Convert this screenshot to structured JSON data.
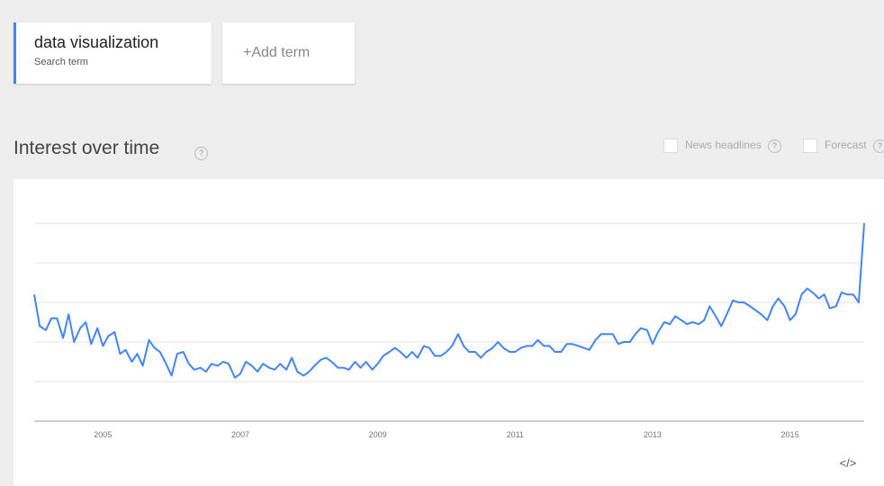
{
  "search_card": {
    "term": "data visualization",
    "caption": "Search term"
  },
  "add_card": {
    "label": "+Add term"
  },
  "section": {
    "title": "Interest over time",
    "help_icon": "?"
  },
  "options": {
    "news": "News headlines",
    "forecast": "Forecast"
  },
  "embed_icon": "</>",
  "chart_data": {
    "type": "line",
    "color": "#4285f4",
    "xlim": [
      2004,
      2016.08
    ],
    "xticks": [
      2005,
      2007,
      2009,
      2011,
      2013,
      2015
    ],
    "ylim": [
      0,
      100
    ],
    "ygrid": [
      20,
      40,
      60,
      80,
      100
    ],
    "x": [
      2004,
      2004.08,
      2004.17,
      2004.25,
      2004.33,
      2004.42,
      2004.5,
      2004.58,
      2004.67,
      2004.75,
      2004.83,
      2004.92,
      2005,
      2005.08,
      2005.17,
      2005.25,
      2005.33,
      2005.42,
      2005.5,
      2005.58,
      2005.67,
      2005.75,
      2005.83,
      2005.92,
      2006,
      2006.08,
      2006.17,
      2006.25,
      2006.33,
      2006.42,
      2006.5,
      2006.58,
      2006.67,
      2006.75,
      2006.83,
      2006.92,
      2007,
      2007.08,
      2007.17,
      2007.25,
      2007.33,
      2007.42,
      2007.5,
      2007.58,
      2007.67,
      2007.75,
      2007.83,
      2007.92,
      2008,
      2008.08,
      2008.17,
      2008.25,
      2008.33,
      2008.42,
      2008.5,
      2008.58,
      2008.67,
      2008.75,
      2008.83,
      2008.92,
      2009,
      2009.08,
      2009.17,
      2009.25,
      2009.33,
      2009.42,
      2009.5,
      2009.58,
      2009.67,
      2009.75,
      2009.83,
      2009.92,
      2010,
      2010.08,
      2010.17,
      2010.25,
      2010.33,
      2010.42,
      2010.5,
      2010.58,
      2010.67,
      2010.75,
      2010.83,
      2010.92,
      2011,
      2011.08,
      2011.17,
      2011.25,
      2011.33,
      2011.42,
      2011.5,
      2011.58,
      2011.67,
      2011.75,
      2011.83,
      2011.92,
      2012,
      2012.08,
      2012.17,
      2012.25,
      2012.33,
      2012.42,
      2012.5,
      2012.58,
      2012.67,
      2012.75,
      2012.83,
      2012.92,
      2013,
      2013.08,
      2013.17,
      2013.25,
      2013.33,
      2013.42,
      2013.5,
      2013.58,
      2013.67,
      2013.75,
      2013.83,
      2013.92,
      2014,
      2014.08,
      2014.17,
      2014.25,
      2014.33,
      2014.42,
      2014.5,
      2014.58,
      2014.67,
      2014.75,
      2014.83,
      2014.92,
      2015,
      2015.08,
      2015.17,
      2015.25,
      2015.33,
      2015.42,
      2015.5,
      2015.58,
      2015.67,
      2015.75,
      2015.83,
      2015.92,
      2016,
      2016.08
    ],
    "values": [
      64,
      48,
      46,
      52,
      52,
      42,
      54,
      40,
      47,
      50,
      39,
      47,
      38,
      43,
      45,
      34,
      36,
      30,
      34,
      28,
      41,
      37,
      35,
      29,
      23,
      34,
      35,
      29,
      26,
      27,
      25,
      29,
      28,
      30,
      29,
      22,
      24,
      30,
      28,
      25,
      29,
      27,
      26,
      29,
      26,
      32,
      25,
      23,
      25,
      28,
      31,
      32,
      30,
      27,
      27,
      26,
      30,
      27,
      30,
      26,
      29,
      33,
      35,
      37,
      35,
      32,
      35,
      32,
      38,
      37,
      33,
      33,
      35,
      38,
      44,
      38,
      35,
      35,
      32,
      35,
      37,
      40,
      37,
      35,
      35,
      37,
      38,
      38,
      41,
      38,
      38,
      35,
      35,
      39,
      39,
      38,
      37,
      36,
      41,
      44,
      44,
      44,
      39,
      40,
      40,
      44,
      47,
      46,
      39,
      45,
      50,
      49,
      53,
      51,
      49,
      50,
      49,
      51,
      58,
      53,
      48,
      54,
      61,
      60,
      60,
      58,
      56,
      54,
      51,
      58,
      62,
      58,
      51,
      54,
      64,
      67,
      65,
      62,
      64,
      57,
      58,
      65,
      64,
      64,
      60,
      100
    ]
  }
}
